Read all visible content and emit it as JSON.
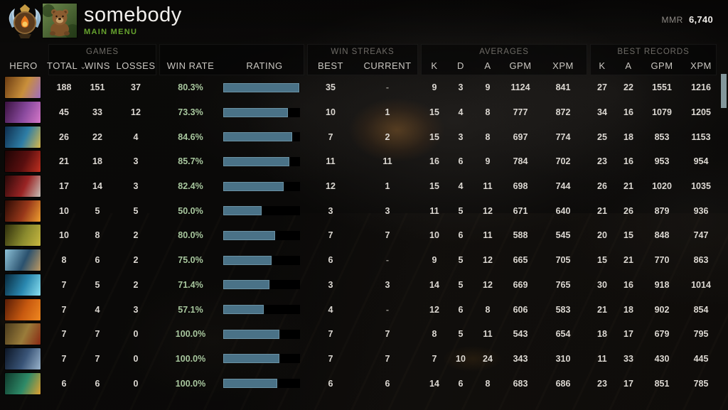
{
  "topbar": {
    "player_name": "somebody",
    "nav_label": "MAIN MENU",
    "mmr_label": "MMR",
    "mmr_value": "6,740"
  },
  "icons": {
    "sort_chevron": "⌄",
    "rank_medal": "immortal-rank-medal",
    "avatar": "bear-avatar"
  },
  "colors": {
    "accent_green": "#66a32e",
    "win_rate_green": "#a8c79e",
    "bar_fill": "#4a7287",
    "bar_border": "#6b92a4",
    "bar_track": "#000000",
    "scrollbar_thumb": "#84979c",
    "header_text": "#cac7c1",
    "group_text": "#6e6b66",
    "value_text": "#dcd8d2"
  },
  "table": {
    "hero_header": "HERO",
    "groups": {
      "games": "GAMES",
      "win_streaks": "WIN STREAKS",
      "averages": "AVERAGES",
      "best_records": "BEST RECORDS"
    },
    "columns": {
      "total": "TOTAL",
      "wins": "WINS",
      "losses": "LOSSES",
      "win_rate": "WIN RATE",
      "rating": "RATING",
      "best": "BEST",
      "current": "CURRENT",
      "avg_k": "K",
      "avg_d": "D",
      "avg_a": "A",
      "avg_gpm": "GPM",
      "avg_xpm": "XPM",
      "rec_k": "K",
      "rec_a": "A",
      "rec_gpm": "GPM",
      "rec_xpm": "XPM"
    },
    "sorted_by": "total",
    "rows": [
      {
        "hero": "hero-1",
        "icon_colors": [
          "#6b3c12",
          "#c98f3a",
          "#a06ec0"
        ],
        "total": 188,
        "wins": 151,
        "losses": 37,
        "win_rate": "80.3%",
        "rating_pct": 99,
        "best": 35,
        "current": "-",
        "k": 9,
        "d": 3,
        "a": 9,
        "gpm": 1124,
        "xpm": 841,
        "rec_k": 27,
        "rec_a": 22,
        "rec_gpm": 1551,
        "rec_xpm": 1216
      },
      {
        "hero": "hero-2",
        "icon_colors": [
          "#3a1240",
          "#8a4a9e",
          "#d678c8"
        ],
        "total": 45,
        "wins": 33,
        "losses": 12,
        "win_rate": "73.3%",
        "rating_pct": 84,
        "best": 10,
        "current": 1,
        "k": 15,
        "d": 4,
        "a": 8,
        "gpm": 777,
        "xpm": 872,
        "rec_k": 34,
        "rec_a": 16,
        "rec_gpm": 1079,
        "rec_xpm": 1205
      },
      {
        "hero": "hero-3",
        "icon_colors": [
          "#0e2e4e",
          "#2e7ea6",
          "#d8b84a"
        ],
        "total": 26,
        "wins": 22,
        "losses": 4,
        "win_rate": "84.6%",
        "rating_pct": 90,
        "best": 7,
        "current": 2,
        "k": 15,
        "d": 3,
        "a": 8,
        "gpm": 697,
        "xpm": 774,
        "rec_k": 25,
        "rec_a": 18,
        "rec_gpm": 853,
        "rec_xpm": 1153
      },
      {
        "hero": "hero-4",
        "icon_colors": [
          "#1c0404",
          "#5a0f0f",
          "#c03020"
        ],
        "total": 21,
        "wins": 18,
        "losses": 3,
        "win_rate": "85.7%",
        "rating_pct": 86,
        "best": 11,
        "current": 11,
        "k": 16,
        "d": 6,
        "a": 9,
        "gpm": 784,
        "xpm": 702,
        "rec_k": 23,
        "rec_a": 16,
        "rec_gpm": 953,
        "rec_xpm": 954
      },
      {
        "hero": "hero-5",
        "icon_colors": [
          "#2a0808",
          "#9a2424",
          "#c8c0b8"
        ],
        "total": 17,
        "wins": 14,
        "losses": 3,
        "win_rate": "82.4%",
        "rating_pct": 79,
        "best": 12,
        "current": 1,
        "k": 15,
        "d": 4,
        "a": 11,
        "gpm": 698,
        "xpm": 744,
        "rec_k": 26,
        "rec_a": 21,
        "rec_gpm": 1020,
        "rec_xpm": 1035
      },
      {
        "hero": "hero-6",
        "icon_colors": [
          "#2a0a04",
          "#98381a",
          "#f0a030"
        ],
        "total": 10,
        "wins": 5,
        "losses": 5,
        "win_rate": "50.0%",
        "rating_pct": 50,
        "best": 3,
        "current": 3,
        "k": 11,
        "d": 5,
        "a": 12,
        "gpm": 671,
        "xpm": 640,
        "rec_k": 21,
        "rec_a": 26,
        "rec_gpm": 879,
        "rec_xpm": 936
      },
      {
        "hero": "hero-7",
        "icon_colors": [
          "#2e2e0c",
          "#8a8a2e",
          "#c8b840"
        ],
        "total": 10,
        "wins": 8,
        "losses": 2,
        "win_rate": "80.0%",
        "rating_pct": 68,
        "best": 7,
        "current": 7,
        "k": 10,
        "d": 6,
        "a": 11,
        "gpm": 588,
        "xpm": 545,
        "rec_k": 20,
        "rec_a": 15,
        "rec_gpm": 848,
        "rec_xpm": 747
      },
      {
        "hero": "hero-8",
        "icon_colors": [
          "#8ec2d8",
          "#2a516e",
          "#c09a62"
        ],
        "total": 8,
        "wins": 6,
        "losses": 2,
        "win_rate": "75.0%",
        "rating_pct": 63,
        "best": 6,
        "current": "-",
        "k": 9,
        "d": 5,
        "a": 12,
        "gpm": 665,
        "xpm": 705,
        "rec_k": 15,
        "rec_a": 21,
        "rec_gpm": 770,
        "rec_xpm": 863
      },
      {
        "hero": "hero-9",
        "icon_colors": [
          "#082a3e",
          "#2a88b0",
          "#8ae0f0"
        ],
        "total": 7,
        "wins": 5,
        "losses": 2,
        "win_rate": "71.4%",
        "rating_pct": 60,
        "best": 3,
        "current": 3,
        "k": 14,
        "d": 5,
        "a": 12,
        "gpm": 669,
        "xpm": 765,
        "rec_k": 30,
        "rec_a": 16,
        "rec_gpm": 918,
        "rec_xpm": 1014
      },
      {
        "hero": "hero-10",
        "icon_colors": [
          "#581c06",
          "#c85a10",
          "#f08820"
        ],
        "total": 7,
        "wins": 4,
        "losses": 3,
        "win_rate": "57.1%",
        "rating_pct": 53,
        "best": 4,
        "current": "-",
        "k": 12,
        "d": 6,
        "a": 8,
        "gpm": 606,
        "xpm": 583,
        "rec_k": 21,
        "rec_a": 18,
        "rec_gpm": 902,
        "rec_xpm": 854
      },
      {
        "hero": "hero-11",
        "icon_colors": [
          "#4a3a1c",
          "#9a7c3a",
          "#8a2812"
        ],
        "total": 7,
        "wins": 7,
        "losses": 0,
        "win_rate": "100.0%",
        "rating_pct": 73,
        "best": 7,
        "current": 7,
        "k": 8,
        "d": 5,
        "a": 11,
        "gpm": 543,
        "xpm": 654,
        "rec_k": 18,
        "rec_a": 17,
        "rec_gpm": 679,
        "rec_xpm": 795
      },
      {
        "hero": "hero-12",
        "icon_colors": [
          "#0c1626",
          "#3a5578",
          "#9ab4cc"
        ],
        "total": 7,
        "wins": 7,
        "losses": 0,
        "win_rate": "100.0%",
        "rating_pct": 73,
        "best": 7,
        "current": 7,
        "k": 7,
        "d": 10,
        "a": 24,
        "gpm": 343,
        "xpm": 310,
        "rec_k": 11,
        "rec_a": 33,
        "rec_gpm": 430,
        "rec_xpm": 445
      },
      {
        "hero": "hero-13",
        "icon_colors": [
          "#0f3a2c",
          "#2e8a68",
          "#e0a030"
        ],
        "total": 6,
        "wins": 6,
        "losses": 0,
        "win_rate": "100.0%",
        "rating_pct": 70,
        "best": 6,
        "current": 6,
        "k": 14,
        "d": 6,
        "a": 8,
        "gpm": 683,
        "xpm": 686,
        "rec_k": 23,
        "rec_a": 17,
        "rec_gpm": 851,
        "rec_xpm": 785
      }
    ]
  }
}
